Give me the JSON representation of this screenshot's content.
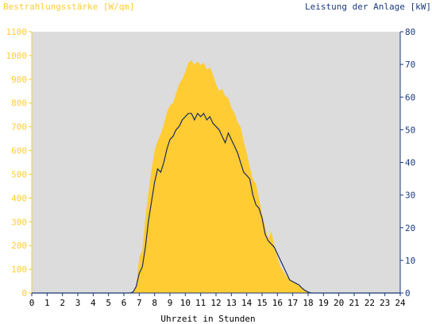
{
  "chart_data": {
    "type": "area",
    "left_axis_label": "Bestrahlungsstärke [W/qm]",
    "right_axis_label": "Leistung der Anlage [kW]",
    "xlabel": "Uhrzeit in Stunden",
    "x_ticks": [
      "0",
      "1",
      "2",
      "3",
      "4",
      "5",
      "6",
      "7",
      "8",
      "9",
      "10",
      "11",
      "12",
      "13",
      "14",
      "15",
      "16",
      "17",
      "18",
      "19",
      "20",
      "21",
      "22",
      "23",
      "24"
    ],
    "left_ticks": [
      "0",
      "100",
      "200",
      "300",
      "400",
      "500",
      "600",
      "700",
      "800",
      "900",
      "1000",
      "1100"
    ],
    "right_ticks": [
      "0",
      "10",
      "20",
      "30",
      "40",
      "50",
      "60",
      "70",
      "80"
    ],
    "xlim": [
      0,
      24
    ],
    "ylim_left": [
      0,
      1100
    ],
    "ylim_right": [
      0,
      80
    ],
    "grid": false,
    "colors": {
      "irradiance": "#ffcc33",
      "power": "#1a2a5c",
      "left_axis_text": "#ffcc33",
      "right_axis_text": "#1a3a7a",
      "plot_background": "#dcdcdc"
    },
    "series": [
      {
        "name": "Bestrahlungsstärke [W/qm]",
        "axis": "left",
        "style": "area",
        "x": [
          0,
          6.4,
          6.6,
          6.8,
          7.0,
          7.2,
          7.4,
          7.6,
          7.8,
          8.0,
          8.2,
          8.4,
          8.6,
          8.8,
          9.0,
          9.2,
          9.4,
          9.6,
          9.8,
          10.0,
          10.2,
          10.4,
          10.6,
          10.8,
          11.0,
          11.2,
          11.4,
          11.6,
          11.8,
          12.0,
          12.2,
          12.4,
          12.6,
          12.8,
          13.0,
          13.2,
          13.4,
          13.6,
          13.8,
          14.0,
          14.2,
          14.4,
          14.6,
          14.8,
          15.0,
          15.2,
          15.4,
          15.6,
          15.8,
          16.0,
          16.2,
          16.4,
          16.6,
          16.8,
          17.0,
          17.2,
          17.4,
          17.6,
          17.8,
          18.0,
          18.2,
          18.4,
          24
        ],
        "y": [
          0,
          0,
          5,
          25,
          150,
          180,
          320,
          420,
          520,
          600,
          640,
          670,
          710,
          760,
          790,
          800,
          840,
          880,
          900,
          930,
          970,
          980,
          960,
          975,
          960,
          970,
          940,
          950,
          920,
          880,
          850,
          860,
          830,
          820,
          780,
          760,
          720,
          700,
          640,
          590,
          530,
          480,
          460,
          400,
          330,
          280,
          230,
          260,
          200,
          150,
          110,
          90,
          70,
          60,
          45,
          40,
          30,
          20,
          10,
          5,
          0,
          0,
          0
        ]
      },
      {
        "name": "Leistung der Anlage [kW]",
        "axis": "right",
        "style": "line",
        "x": [
          0,
          6.4,
          6.6,
          6.8,
          7.0,
          7.2,
          7.4,
          7.6,
          7.8,
          8.0,
          8.2,
          8.4,
          8.6,
          8.8,
          9.0,
          9.2,
          9.4,
          9.6,
          9.8,
          10.0,
          10.2,
          10.4,
          10.6,
          10.8,
          11.0,
          11.2,
          11.4,
          11.6,
          11.8,
          12.0,
          12.2,
          12.4,
          12.6,
          12.8,
          13.0,
          13.2,
          13.4,
          13.6,
          13.8,
          14.0,
          14.2,
          14.4,
          14.6,
          14.8,
          15.0,
          15.2,
          15.4,
          15.6,
          15.8,
          16.0,
          16.2,
          16.4,
          16.6,
          16.8,
          17.0,
          17.2,
          17.4,
          17.6,
          17.8,
          18.0,
          18.2,
          18.4,
          24
        ],
        "y": [
          0,
          0,
          0.3,
          2,
          6,
          8,
          14,
          22,
          28,
          34,
          38,
          37,
          40,
          44,
          47,
          48,
          50,
          51,
          53,
          54,
          55,
          55,
          53,
          55,
          54,
          55,
          53,
          54,
          52,
          51,
          50,
          48,
          46,
          49,
          47,
          45,
          43,
          40,
          37,
          36,
          35,
          30,
          27,
          26,
          23,
          18,
          16,
          15,
          14,
          12,
          10,
          8,
          6,
          4,
          3.5,
          3,
          2.5,
          1.5,
          0.8,
          0.3,
          0,
          0,
          0
        ]
      }
    ]
  }
}
